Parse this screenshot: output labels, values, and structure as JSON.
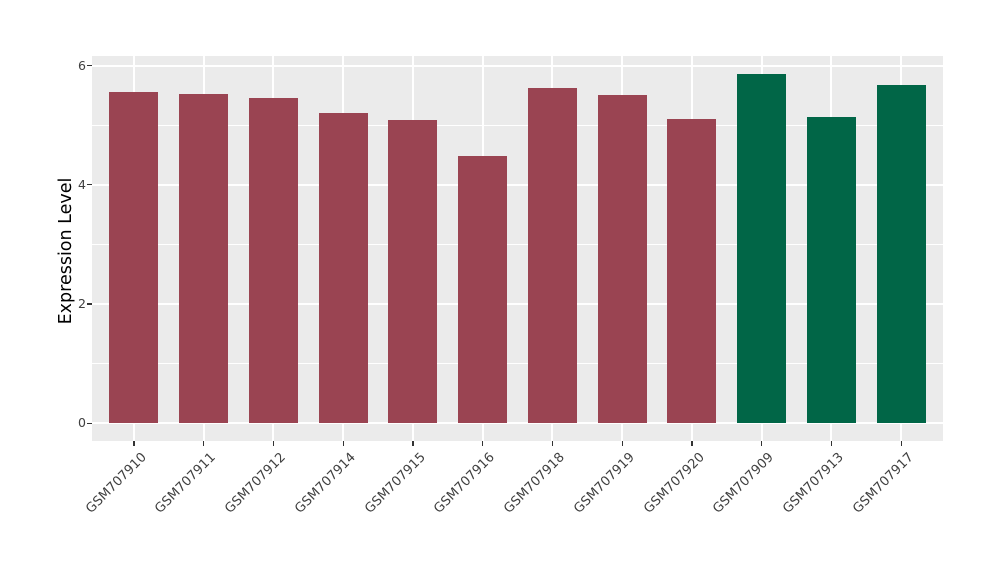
{
  "chart_data": {
    "type": "bar",
    "title": "",
    "xlabel": "",
    "ylabel": "Expression Level",
    "categories": [
      "GSM707910",
      "GSM707911",
      "GSM707912",
      "GSM707914",
      "GSM707915",
      "GSM707916",
      "GSM707918",
      "GSM707919",
      "GSM707920",
      "GSM707909",
      "GSM707913",
      "GSM707917"
    ],
    "values": [
      5.55,
      5.53,
      5.46,
      5.21,
      5.08,
      4.49,
      5.63,
      5.51,
      5.11,
      5.86,
      5.14,
      5.68
    ],
    "bar_colors": [
      "#9A4452",
      "#9A4452",
      "#9A4452",
      "#9A4452",
      "#9A4452",
      "#9A4452",
      "#9A4452",
      "#9A4452",
      "#9A4452",
      "#016647",
      "#016647",
      "#016647"
    ],
    "group_colors": {
      "group1": "#9A4452",
      "group2": "#016647"
    },
    "yticks": [
      0,
      2,
      4,
      6
    ],
    "yticks_minor": [
      1,
      3,
      5
    ],
    "ylim": [
      -0.3,
      6.16
    ],
    "bar_rel_width": 0.7,
    "grid": true,
    "legend": "none",
    "panel_bg": "#EBEBEB",
    "grid_color": "#FFFFFF",
    "tick_label_color": "#404040",
    "axis_title_color": "#000000"
  }
}
